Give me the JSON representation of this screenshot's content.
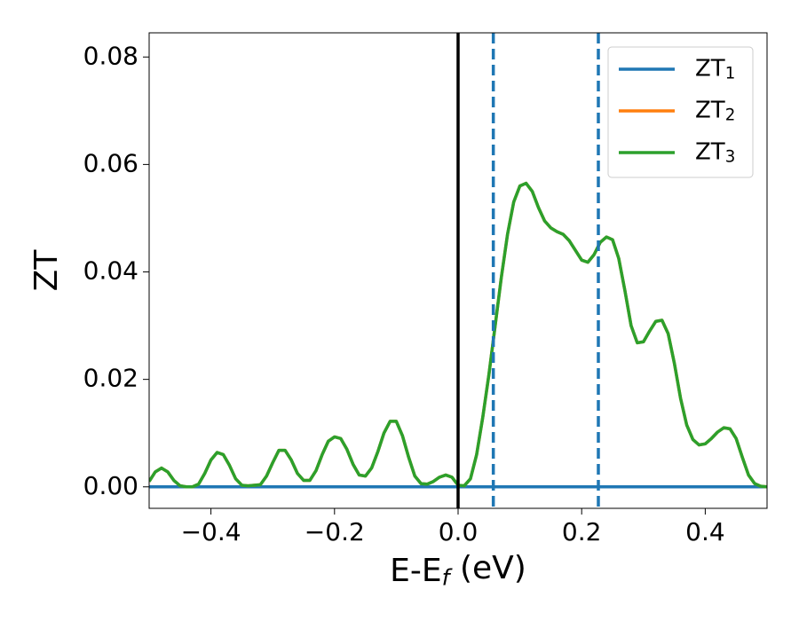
{
  "chart_data": {
    "type": "line",
    "xlabel": "E-E_f (eV)",
    "ylabel": "ZT",
    "xlim": [
      -0.5,
      0.5
    ],
    "ylim": [
      -0.004,
      0.0845
    ],
    "xticks": [
      {
        "value": -0.4,
        "label": "−0.4"
      },
      {
        "value": -0.2,
        "label": "−0.2"
      },
      {
        "value": 0.0,
        "label": "0.0"
      },
      0.2,
      0.4
    ],
    "yticks": [
      {
        "value": 0,
        "label": "0.00"
      },
      {
        "value": 0.02,
        "label": "0.02"
      },
      {
        "value": 0.04,
        "label": "0.04"
      },
      {
        "value": 0.06,
        "label": "0.06"
      },
      {
        "value": 0.08,
        "label": "0.08"
      }
    ],
    "legend": "upper right",
    "vlines": [
      {
        "x": 0,
        "color": "#000000",
        "style": "solid"
      },
      {
        "x": 0.057,
        "color": "#1f77b4",
        "style": "dashed"
      },
      {
        "x": 0.227,
        "color": "#1f77b4",
        "style": "dashed"
      }
    ],
    "x": [
      -0.5,
      -0.49,
      -0.48,
      -0.47,
      -0.46,
      -0.45,
      -0.44,
      -0.43,
      -0.42,
      -0.41,
      -0.4,
      -0.39,
      -0.38,
      -0.37,
      -0.36,
      -0.35,
      -0.34,
      -0.33,
      -0.32,
      -0.31,
      -0.3,
      -0.29,
      -0.28,
      -0.27,
      -0.26,
      -0.25,
      -0.24,
      -0.23,
      -0.22,
      -0.21,
      -0.2,
      -0.19,
      -0.18,
      -0.17,
      -0.16,
      -0.15,
      -0.14,
      -0.13,
      -0.12,
      -0.11,
      -0.1,
      -0.09,
      -0.08,
      -0.07,
      -0.06,
      -0.05,
      -0.04,
      -0.03,
      -0.02,
      -0.01,
      0.0,
      0.01,
      0.02,
      0.03,
      0.04,
      0.05,
      0.06,
      0.07,
      0.08,
      0.09,
      0.1,
      0.11,
      0.12,
      0.13,
      0.14,
      0.15,
      0.16,
      0.17,
      0.18,
      0.19,
      0.2,
      0.21,
      0.22,
      0.23,
      0.24,
      0.25,
      0.26,
      0.27,
      0.28,
      0.29,
      0.3,
      0.31,
      0.32,
      0.33,
      0.34,
      0.35,
      0.36,
      0.37,
      0.38,
      0.39,
      0.4,
      0.41,
      0.42,
      0.43,
      0.44,
      0.45,
      0.46,
      0.47,
      0.48,
      0.49,
      0.5
    ],
    "series": [
      {
        "name": "ZT_1",
        "color": "#1f77b4",
        "values": [
          0,
          0,
          0,
          0,
          0,
          0,
          0,
          0,
          0,
          0,
          0,
          0,
          0,
          0,
          0,
          0,
          0,
          0,
          0,
          0,
          0,
          0,
          0,
          0,
          0,
          0,
          0,
          0,
          0,
          0,
          0,
          0,
          0,
          0,
          0,
          0,
          0,
          0,
          0,
          0,
          0,
          0,
          0,
          0,
          0,
          0,
          0,
          0,
          0,
          0,
          0,
          0,
          0,
          0,
          0,
          0,
          0,
          0,
          0,
          0,
          0,
          0,
          0,
          0,
          0,
          0,
          0,
          0,
          0,
          0,
          0,
          0,
          0,
          0,
          0,
          0,
          0,
          0,
          0,
          0,
          0,
          0,
          0,
          0,
          0,
          0,
          0,
          0,
          0,
          0,
          0,
          0,
          0,
          0,
          0,
          0,
          0,
          0,
          0,
          0,
          0
        ]
      },
      {
        "name": "ZT_2",
        "color": "#ff7f0e",
        "values": [
          0.001,
          0.0028,
          0.0035,
          0.0028,
          0.0012,
          0.0002,
          0,
          0,
          0.0005,
          0.0025,
          0.005,
          0.0064,
          0.006,
          0.004,
          0.0015,
          0.0003,
          0.0002,
          0.0003,
          0.0004,
          0.002,
          0.0045,
          0.0068,
          0.0068,
          0.005,
          0.0025,
          0.0012,
          0.0012,
          0.003,
          0.006,
          0.0085,
          0.0093,
          0.009,
          0.007,
          0.0042,
          0.0022,
          0.002,
          0.0035,
          0.0065,
          0.01,
          0.0122,
          0.0122,
          0.0095,
          0.0055,
          0.002,
          0.0006,
          0.0005,
          0.001,
          0.0018,
          0.0022,
          0.0018,
          0.0003,
          0.0002,
          0.0015,
          0.006,
          0.013,
          0.021,
          0.03,
          0.039,
          0.047,
          0.053,
          0.056,
          0.0565,
          0.055,
          0.052,
          0.0495,
          0.0482,
          0.0475,
          0.047,
          0.0458,
          0.044,
          0.0422,
          0.0418,
          0.0432,
          0.0455,
          0.0465,
          0.046,
          0.0425,
          0.0365,
          0.03,
          0.0268,
          0.027,
          0.029,
          0.0308,
          0.031,
          0.0285,
          0.023,
          0.0165,
          0.0115,
          0.0088,
          0.0078,
          0.008,
          0.009,
          0.0102,
          0.011,
          0.0108,
          0.009,
          0.0055,
          0.0022,
          0.0006,
          0.0001,
          0
        ]
      },
      {
        "name": "ZT_3",
        "color": "#2ca02c",
        "values": [
          0.001,
          0.0028,
          0.0035,
          0.0028,
          0.0012,
          0.0002,
          0,
          0,
          0.0005,
          0.0025,
          0.005,
          0.0064,
          0.006,
          0.004,
          0.0015,
          0.0003,
          0.0002,
          0.0003,
          0.0004,
          0.002,
          0.0045,
          0.0068,
          0.0068,
          0.005,
          0.0025,
          0.0012,
          0.0012,
          0.003,
          0.006,
          0.0085,
          0.0093,
          0.009,
          0.007,
          0.0042,
          0.0022,
          0.002,
          0.0035,
          0.0065,
          0.01,
          0.0122,
          0.0122,
          0.0095,
          0.0055,
          0.002,
          0.0006,
          0.0005,
          0.001,
          0.0018,
          0.0022,
          0.0018,
          0.0003,
          0.0002,
          0.0015,
          0.006,
          0.013,
          0.021,
          0.03,
          0.039,
          0.047,
          0.053,
          0.056,
          0.0565,
          0.055,
          0.052,
          0.0495,
          0.0482,
          0.0475,
          0.047,
          0.0458,
          0.044,
          0.0422,
          0.0418,
          0.0432,
          0.0455,
          0.0465,
          0.046,
          0.0425,
          0.0365,
          0.03,
          0.0268,
          0.027,
          0.029,
          0.0308,
          0.031,
          0.0285,
          0.023,
          0.0165,
          0.0115,
          0.0088,
          0.0078,
          0.008,
          0.009,
          0.0102,
          0.011,
          0.0108,
          0.009,
          0.0055,
          0.0022,
          0.0006,
          0.0001,
          0
        ]
      }
    ]
  }
}
